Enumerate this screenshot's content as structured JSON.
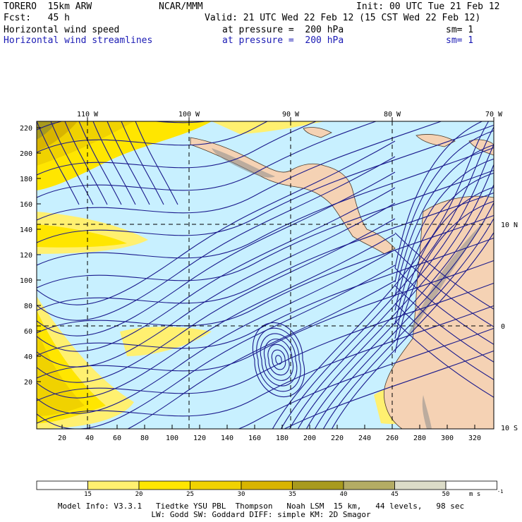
{
  "header": {
    "model": "TORERO  15km ARW",
    "center": "NCAR/MMM",
    "init": "Init: 00 UTC Tue 21 Feb 12",
    "fcst": "Fcst:   45 h",
    "valid": "Valid: 21 UTC Wed 22 Feb 12 (15 CST Wed 22 Feb 12)",
    "field1_name": "Horizontal wind speed",
    "field1_level": "at pressure =  200 hPa",
    "field1_sm": "sm= 1",
    "field2_name": "Horizontal wind streamlines",
    "field2_level": "at pressure =  200 hPa",
    "field2_sm": "sm= 1"
  },
  "map": {
    "top_longitudes": [
      "110 W",
      "100 W",
      "90 W",
      "80 W",
      "70 W"
    ],
    "right_latitudes": [
      "10 N",
      "0",
      "10 S"
    ],
    "y_ticks": [
      "220",
      "200",
      "180",
      "160",
      "140",
      "120",
      "100",
      "80",
      "60",
      "40",
      "20"
    ],
    "x_ticks": [
      "20",
      "40",
      "60",
      "80",
      "100",
      "120",
      "140",
      "160",
      "180",
      "200",
      "220",
      "240",
      "260",
      "280",
      "300",
      "320"
    ],
    "colors": {
      "ocean_low_wind": "#c8f0ff",
      "land": "#f5d2b4",
      "streamline": "#1a1a8c",
      "grid": "#000000"
    }
  },
  "colorbar": {
    "labels": [
      "15",
      "20",
      "25",
      "30",
      "35",
      "40",
      "45",
      "50"
    ],
    "units": "m s",
    "units_exp": "-1",
    "colors": [
      "#ffffff",
      "#fff070",
      "#ffe600",
      "#f0d200",
      "#d8b400",
      "#a89a1e",
      "#b4ac64",
      "#dcdcc8",
      "#ffffff"
    ]
  },
  "footer": {
    "line1": "Model Info: V3.3.1   Tiedtke YSU PBL  Thompson   Noah LSM  15 km,   44 levels,   98 sec",
    "line2": "LW: Godd SW: Goddard DIFF: simple KM: 2D Smagor"
  }
}
